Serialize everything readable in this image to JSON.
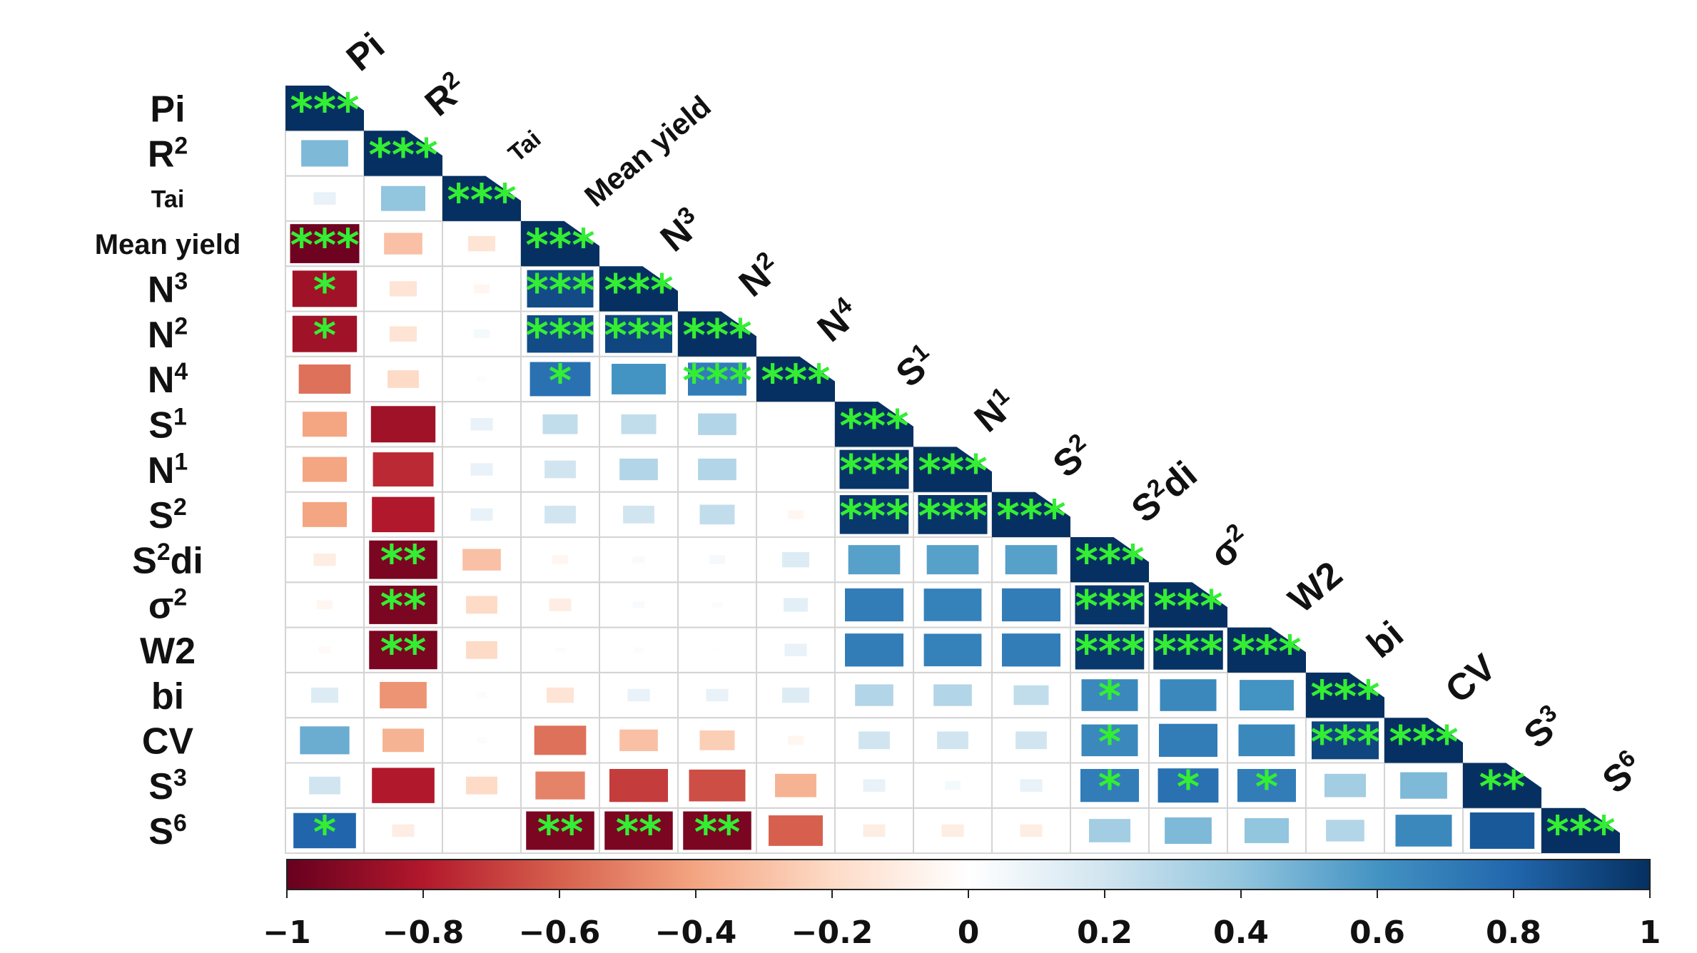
{
  "chart_data": {
    "type": "heatmap",
    "subtype": "correlation-lower-triangle",
    "variables": [
      {
        "label": "Pi",
        "sup": ""
      },
      {
        "label": "R",
        "sup": "2"
      },
      {
        "label": "Tai",
        "sup": ""
      },
      {
        "label": "Mean yield",
        "sup": ""
      },
      {
        "label": "N",
        "sup": "3"
      },
      {
        "label": "N",
        "sup": "2"
      },
      {
        "label": "N",
        "sup": "4"
      },
      {
        "label": "S",
        "sup": "1"
      },
      {
        "label": "N",
        "sup": "1"
      },
      {
        "label": "S",
        "sup": "2"
      },
      {
        "label": "S",
        "sup": "2",
        "suffix": "di"
      },
      {
        "label": "σ",
        "sup": "2"
      },
      {
        "label": "W2",
        "sup": ""
      },
      {
        "label": "bi",
        "sup": ""
      },
      {
        "label": "CV",
        "sup": ""
      },
      {
        "label": "S",
        "sup": "3"
      },
      {
        "label": "S",
        "sup": "6"
      }
    ],
    "correlations": [
      [
        1.0
      ],
      [
        0.45,
        1.0
      ],
      [
        0.1,
        0.4,
        1.0
      ],
      [
        -0.98,
        -0.3,
        -0.15,
        1.0
      ],
      [
        -0.85,
        -0.15,
        -0.05,
        0.9,
        1.0
      ],
      [
        -0.85,
        -0.15,
        0.05,
        0.9,
        0.92,
        1.0
      ],
      [
        -0.55,
        -0.2,
        0.02,
        0.75,
        0.6,
        0.7,
        1.0
      ],
      [
        -0.4,
        -0.85,
        0.1,
        0.25,
        0.25,
        0.3,
        0.0,
        1.0
      ],
      [
        -0.4,
        -0.75,
        0.1,
        0.2,
        0.3,
        0.3,
        0.0,
        0.98,
        1.0
      ],
      [
        -0.4,
        -0.8,
        0.1,
        0.2,
        0.2,
        0.25,
        -0.05,
        0.97,
        0.98,
        1.0
      ],
      [
        -0.1,
        -0.95,
        -0.3,
        -0.05,
        0.03,
        0.05,
        0.15,
        0.55,
        0.55,
        0.55,
        1.0
      ],
      [
        -0.05,
        -0.95,
        -0.2,
        -0.1,
        0.03,
        0.02,
        0.12,
        0.7,
        0.68,
        0.7,
        0.98,
        1.0
      ],
      [
        -0.03,
        -0.95,
        -0.2,
        -0.02,
        0.02,
        0.01,
        0.1,
        0.7,
        0.68,
        0.7,
        0.97,
        0.99,
        1.0
      ],
      [
        0.15,
        -0.45,
        -0.02,
        -0.15,
        0.1,
        0.1,
        0.15,
        0.3,
        0.3,
        0.25,
        0.65,
        0.65,
        0.6,
        1.0
      ],
      [
        0.5,
        -0.35,
        -0.02,
        -0.55,
        -0.3,
        -0.25,
        -0.05,
        0.2,
        0.2,
        0.2,
        0.65,
        0.7,
        0.65,
        0.92,
        1.0
      ],
      [
        0.2,
        -0.8,
        -0.2,
        -0.5,
        -0.7,
        -0.65,
        -0.35,
        0.1,
        0.05,
        0.1,
        0.7,
        0.75,
        0.7,
        0.35,
        0.45,
        1.0
      ],
      [
        0.8,
        -0.1,
        0.0,
        -0.95,
        -0.95,
        -0.95,
        -0.6,
        -0.1,
        -0.1,
        -0.1,
        0.35,
        0.45,
        0.4,
        0.3,
        0.65,
        0.85,
        1.0
      ]
    ],
    "significance": [
      [
        "***"
      ],
      [
        "",
        "***"
      ],
      [
        "",
        "",
        "***"
      ],
      [
        "***",
        "",
        "",
        "***"
      ],
      [
        "*",
        "",
        "",
        "***",
        "***"
      ],
      [
        "*",
        "",
        "",
        "***",
        "***",
        "***"
      ],
      [
        "",
        "",
        "",
        "*",
        "",
        "***",
        "***"
      ],
      [
        "",
        "",
        "",
        "",
        "",
        "",
        "",
        "***"
      ],
      [
        "",
        "",
        "",
        "",
        "",
        "",
        "",
        "***",
        "***"
      ],
      [
        "",
        "",
        "",
        "",
        "",
        "",
        "",
        "***",
        "***",
        "***"
      ],
      [
        "",
        "**",
        "",
        "",
        "",
        "",
        "",
        "",
        "",
        "",
        "***"
      ],
      [
        "",
        "**",
        "",
        "",
        "",
        "",
        "",
        "",
        "",
        "",
        "***",
        "***"
      ],
      [
        "",
        "**",
        "",
        "",
        "",
        "",
        "",
        "",
        "",
        "",
        "***",
        "***",
        "***"
      ],
      [
        "",
        "",
        "",
        "",
        "",
        "",
        "",
        "",
        "",
        "",
        "*",
        "",
        "",
        "***"
      ],
      [
        "",
        "",
        "",
        "",
        "",
        "",
        "",
        "",
        "",
        "",
        "*",
        "",
        "",
        "***",
        "***"
      ],
      [
        "",
        "",
        "",
        "",
        "",
        "",
        "",
        "",
        "",
        "",
        "*",
        "*",
        "*",
        "",
        "",
        "**"
      ],
      [
        "*",
        "",
        "",
        "**",
        "**",
        "**",
        "",
        "",
        "",
        "",
        "",
        "",
        "",
        "",
        "",
        "",
        "***"
      ]
    ],
    "colorbar": {
      "range": [
        -1,
        1
      ],
      "ticks": [
        "−1",
        "−0.8",
        "−0.6",
        "−0.4",
        "−0.2",
        "0",
        "0.2",
        "0.4",
        "0.6",
        "0.8",
        "1"
      ],
      "tick_values": [
        -1,
        -0.8,
        -0.6,
        -0.4,
        -0.2,
        0,
        0.2,
        0.4,
        0.6,
        0.8,
        1
      ],
      "colors": [
        "#67001f",
        "#b2182b",
        "#d6604d",
        "#f4a582",
        "#fddbc7",
        "#ffffff",
        "#d1e5f0",
        "#92c5de",
        "#4393c3",
        "#2166ac",
        "#053061"
      ]
    },
    "star_color": "#33ee33"
  }
}
